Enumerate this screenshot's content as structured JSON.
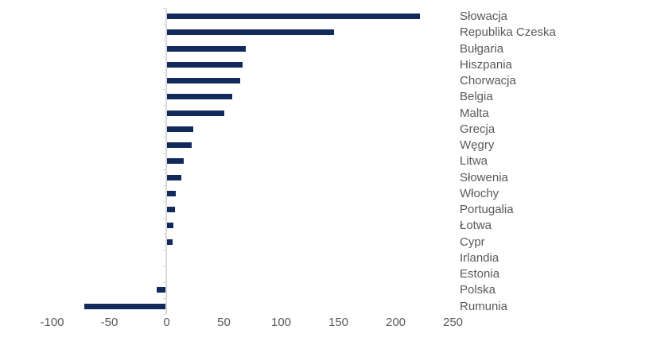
{
  "chart_data": {
    "type": "bar",
    "orientation": "horizontal",
    "title": "",
    "xlabel": "",
    "ylabel": "",
    "categories": [
      "Słowacja",
      "Republika Czeska",
      "Bułgaria",
      "Hiszpania",
      "Chorwacja",
      "Belgia",
      "Malta",
      "Grecja",
      "Węgry",
      "Litwa",
      "Słowenia",
      "Włochy",
      "Portugalia",
      "Łotwa",
      "Cypr",
      "Irlandia",
      "Estonia",
      "Polska",
      "Rumunia"
    ],
    "values": [
      221,
      146,
      69,
      66,
      64,
      57,
      50,
      23,
      22,
      15,
      13,
      8,
      7,
      6,
      5,
      0,
      0,
      -9,
      -72
    ],
    "xlim": [
      -100,
      250
    ],
    "x_ticks": [
      "-100",
      "-50",
      "0",
      "50",
      "100",
      "150",
      "200",
      "250"
    ],
    "x_tick_values": [
      -100,
      -50,
      0,
      50,
      100,
      150,
      200,
      250
    ],
    "grid": false,
    "legend_position": "none",
    "bar_color": "#12295b",
    "label_color": "#595959",
    "axis_line_color": "#d9d9d9",
    "background_color": "#ffffff"
  }
}
